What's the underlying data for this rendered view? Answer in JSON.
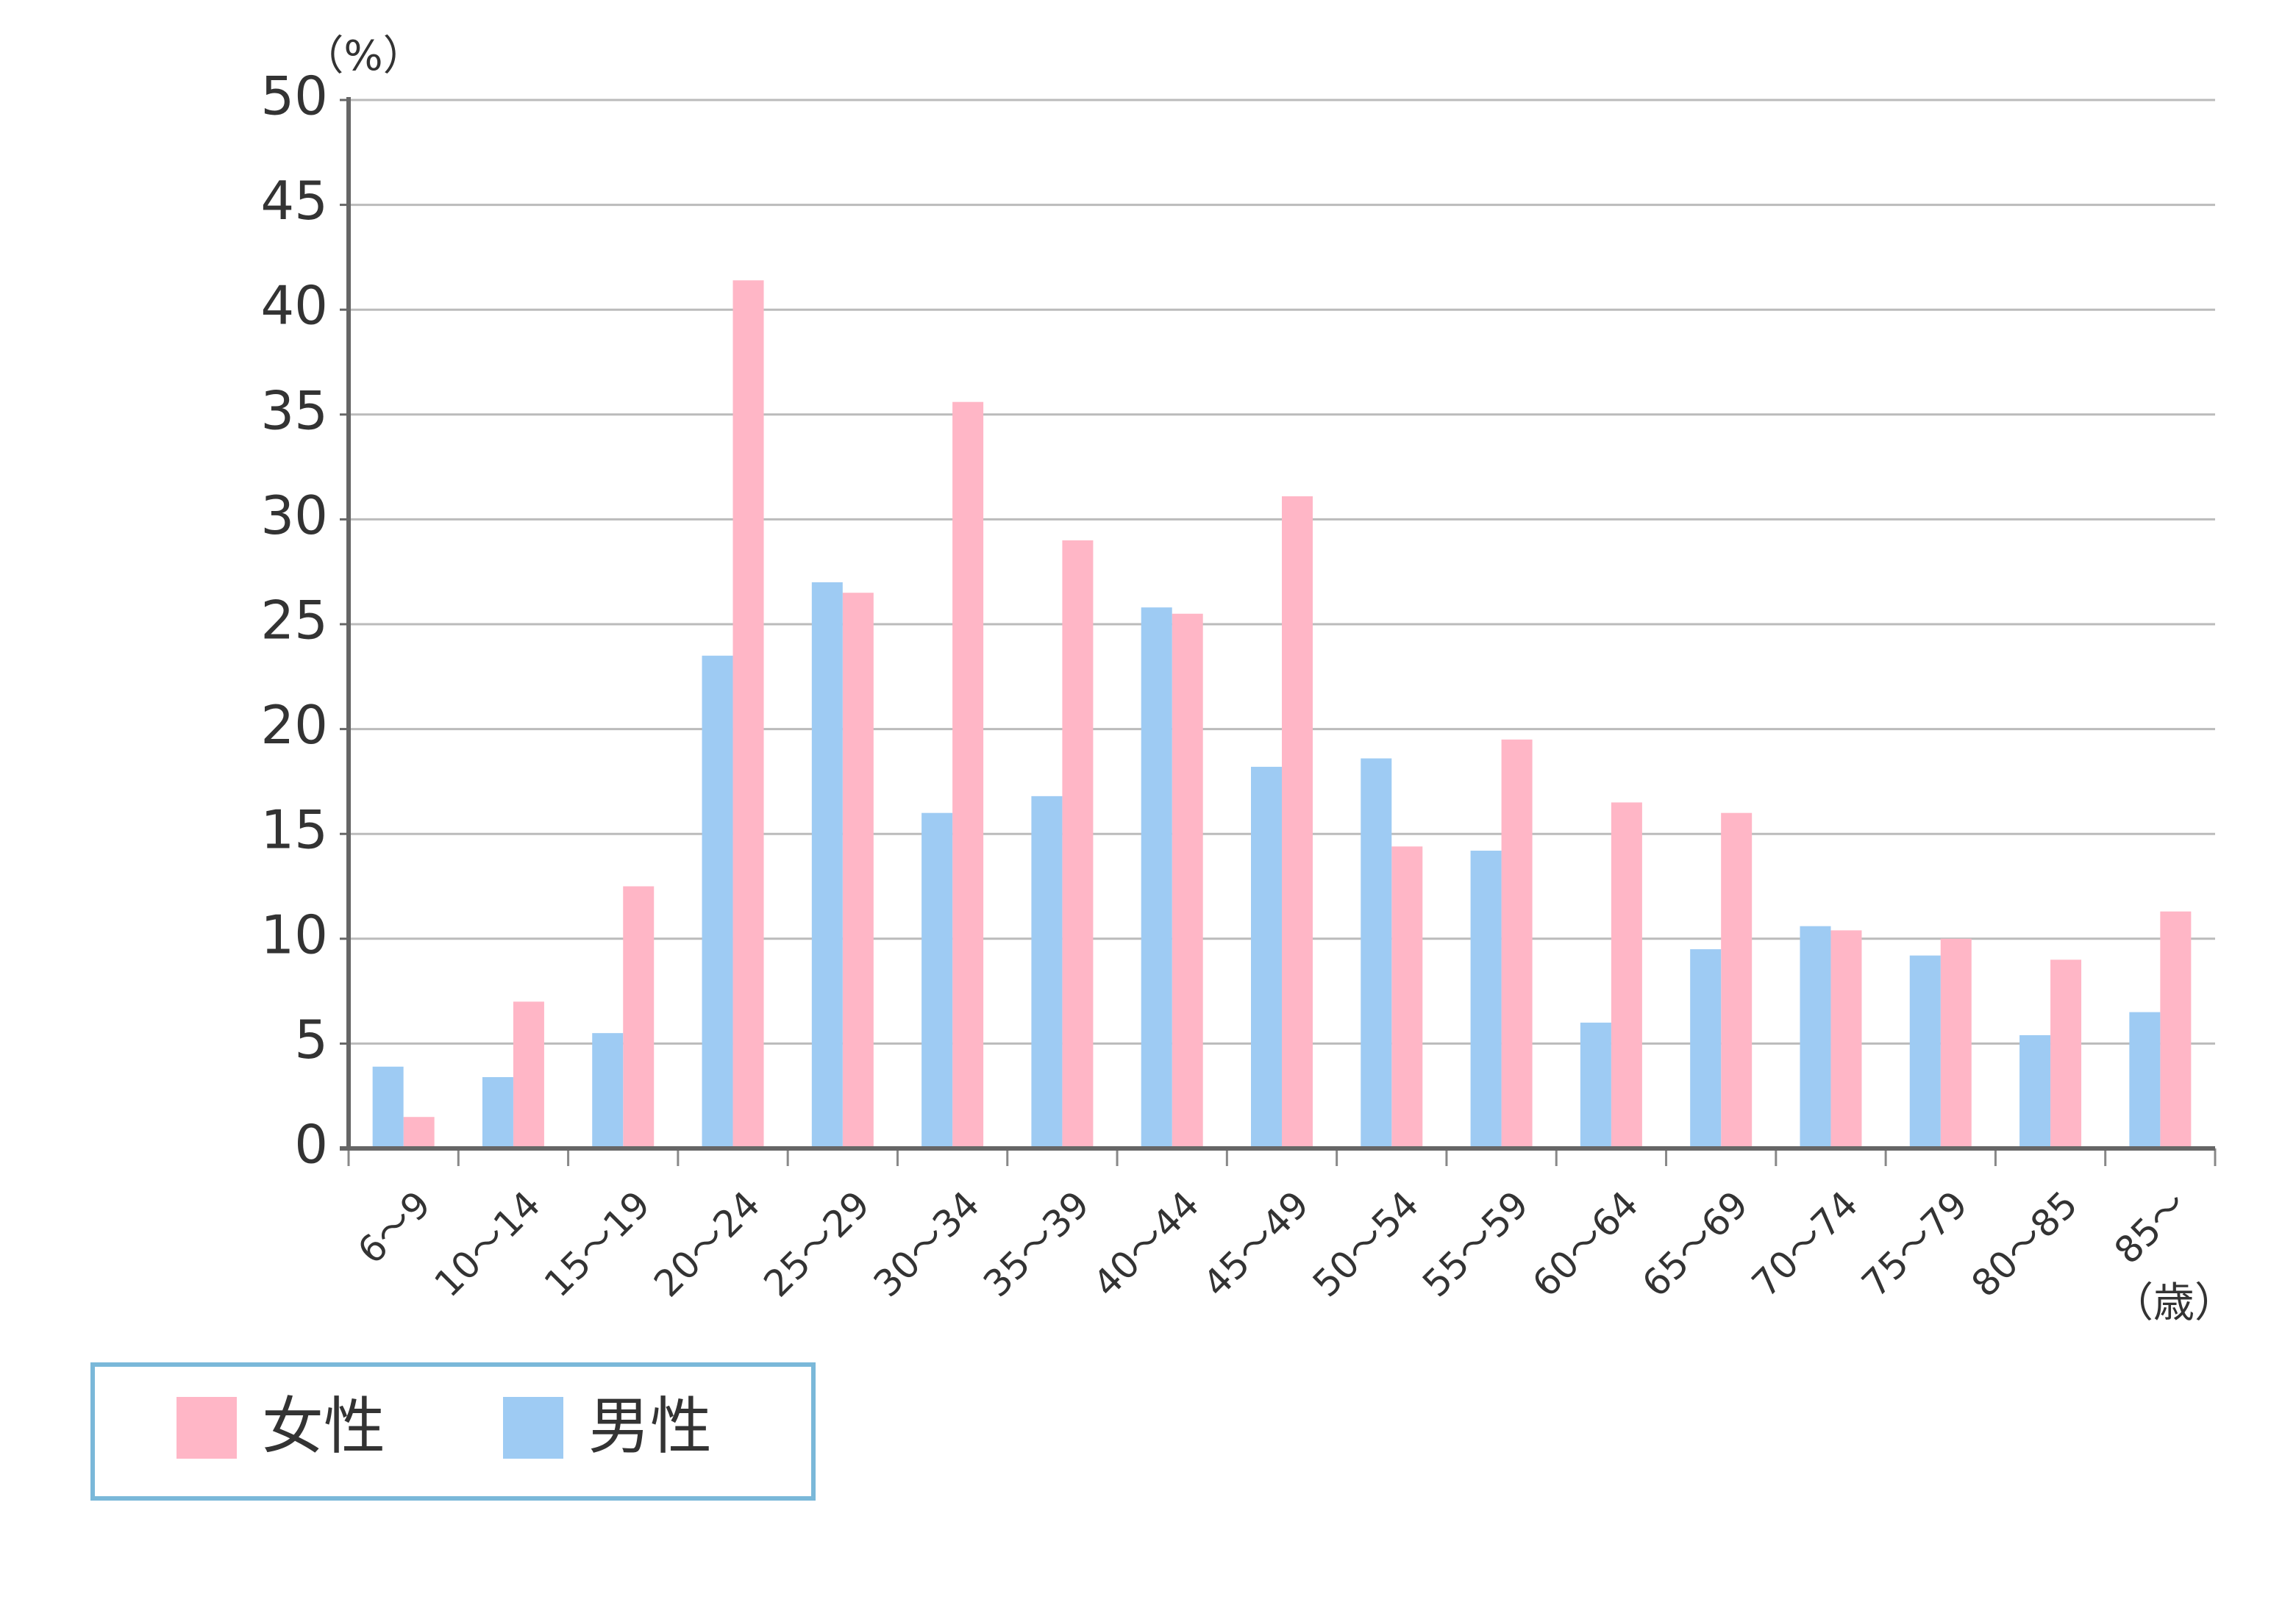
{
  "chart_data": {
    "type": "bar",
    "y_unit_label": "（%）",
    "x_unit_label": "（歳）",
    "categories": [
      "6～9",
      "10～14",
      "15～19",
      "20～24",
      "25～29",
      "30～34",
      "35～39",
      "40～44",
      "45～49",
      "50～54",
      "55～59",
      "60～64",
      "65～69",
      "70～74",
      "75～79",
      "80～85",
      "85～"
    ],
    "series": [
      {
        "name": "女性",
        "color": "#ffb6c6",
        "values": [
          1.5,
          7.0,
          12.5,
          41.4,
          26.5,
          35.6,
          29.0,
          25.5,
          31.1,
          14.4,
          19.5,
          16.5,
          16.0,
          10.4,
          10.0,
          9.0,
          11.3
        ]
      },
      {
        "name": "男性",
        "color": "#9ecbf3",
        "values": [
          3.9,
          3.4,
          5.5,
          23.5,
          27.0,
          16.0,
          16.8,
          25.8,
          18.2,
          18.6,
          14.2,
          6.0,
          9.5,
          10.6,
          9.2,
          5.4,
          6.5
        ]
      }
    ],
    "ylim": [
      0,
      50
    ],
    "yticks": [
      0,
      5,
      10,
      15,
      20,
      25,
      30,
      35,
      40,
      45,
      50
    ],
    "grid": true
  }
}
